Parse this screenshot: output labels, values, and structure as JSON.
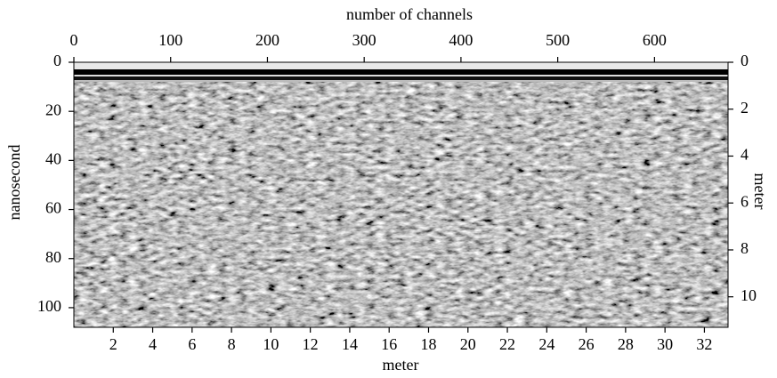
{
  "chart_data": {
    "type": "radargram",
    "x2label": "number of channels",
    "x2lim": [
      0,
      676
    ],
    "x2ticks": [
      0,
      100,
      200,
      300,
      400,
      500,
      600
    ],
    "xlabel": "meter",
    "xlim": [
      0,
      33.2
    ],
    "xticks": [
      2,
      4,
      6,
      8,
      10,
      12,
      14,
      16,
      18,
      20,
      22,
      24,
      26,
      28,
      30,
      32
    ],
    "ylabel": "nanosecond",
    "ylim": [
      0,
      108
    ],
    "yticks": [
      0,
      20,
      40,
      60,
      80,
      100
    ],
    "y2label": "meter",
    "y2lim": [
      0,
      11.3
    ],
    "y2ticks": [
      0,
      2,
      4,
      6,
      8,
      10
    ]
  }
}
